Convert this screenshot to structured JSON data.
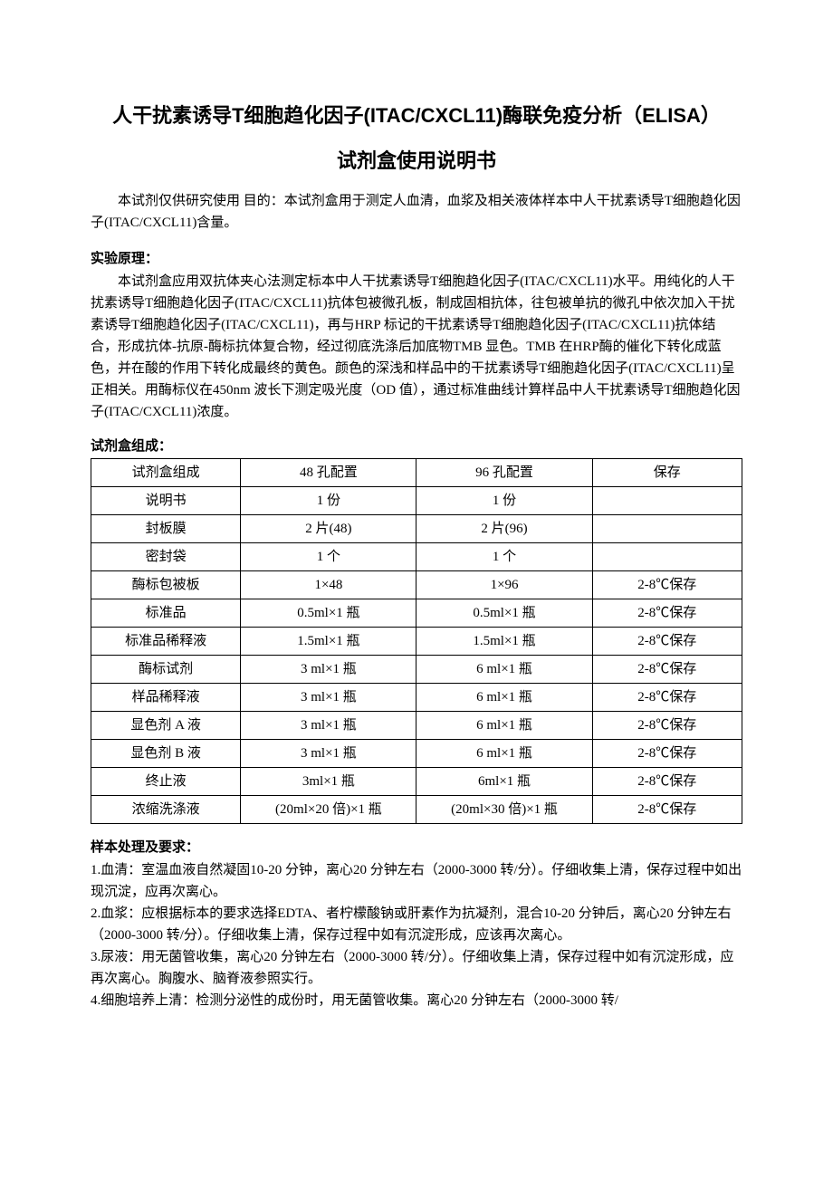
{
  "title_line1": "人干扰素诱导T细胞趋化因子(ITAC/CXCL11)酶联免疫分析（ELISA）",
  "title_line2": "试剂盒使用说明书",
  "intro": "本试剂仅供研究使用 目的：本试剂盒用于测定人血清，血浆及相关液体样本中人干扰素诱导T细胞趋化因子(ITAC/CXCL11)含量。",
  "principle_head": "实验原理：",
  "principle_body": "本试剂盒应用双抗体夹心法测定标本中人干扰素诱导T细胞趋化因子(ITAC/CXCL11)水平。用纯化的人干扰素诱导T细胞趋化因子(ITAC/CXCL11)抗体包被微孔板，制成固相抗体，往包被单抗的微孔中依次加入干扰素诱导T细胞趋化因子(ITAC/CXCL11)，再与HRP 标记的干扰素诱导T细胞趋化因子(ITAC/CXCL11)抗体结合，形成抗体-抗原-酶标抗体复合物，经过彻底洗涤后加底物TMB 显色。TMB 在HRP酶的催化下转化成蓝色，并在酸的作用下转化成最终的黄色。颜色的深浅和样品中的干扰素诱导T细胞趋化因子(ITAC/CXCL11)呈正相关。用酶标仪在450nm 波长下测定吸光度（OD 值），通过标准曲线计算样品中人干扰素诱导T细胞趋化因子(ITAC/CXCL11)浓度。",
  "kit_head": "试剂盒组成：",
  "kit_table": {
    "columns": [
      "试剂盒组成",
      "48 孔配置",
      "96 孔配置",
      "保存"
    ],
    "col_widths": [
      "23%",
      "27%",
      "27%",
      "23%"
    ],
    "border_color": "#000000",
    "font_size": 15,
    "rows": [
      [
        "说明书",
        "1 份",
        "1 份",
        ""
      ],
      [
        "封板膜",
        "2 片(48)",
        "2 片(96)",
        ""
      ],
      [
        "密封袋",
        "1 个",
        "1 个",
        ""
      ],
      [
        "酶标包被板",
        "1×48",
        "1×96",
        "2-8℃保存"
      ],
      [
        "标准品",
        "0.5ml×1 瓶",
        "0.5ml×1 瓶",
        "2-8℃保存"
      ],
      [
        "标准品稀释液",
        "1.5ml×1 瓶",
        "1.5ml×1 瓶",
        "2-8℃保存"
      ],
      [
        "酶标试剂",
        "3 ml×1 瓶",
        "6 ml×1 瓶",
        "2-8℃保存"
      ],
      [
        "样品稀释液",
        "3 ml×1 瓶",
        "6 ml×1 瓶",
        "2-8℃保存"
      ],
      [
        "显色剂 A 液",
        "3 ml×1 瓶",
        "6 ml×1 瓶",
        "2-8℃保存"
      ],
      [
        "显色剂 B 液",
        "3 ml×1 瓶",
        "6 ml×1 瓶",
        "2-8℃保存"
      ],
      [
        "终止液",
        "3ml×1 瓶",
        "6ml×1 瓶",
        "2-8℃保存"
      ],
      [
        "浓缩洗涤液",
        "(20ml×20 倍)×1 瓶",
        "(20ml×30 倍)×1 瓶",
        "2-8℃保存"
      ]
    ]
  },
  "sample_head": "样本处理及要求：",
  "sample_items": [
    "1.血清：室温血液自然凝固10-20 分钟，离心20 分钟左右（2000-3000 转/分）。仔细收集上清，保存过程中如出现沉淀，应再次离心。",
    "2.血浆：应根据标本的要求选择EDTA、者柠檬酸钠或肝素作为抗凝剂，混合10-20 分钟后，离心20 分钟左右（2000-3000 转/分）。仔细收集上清，保存过程中如有沉淀形成，应该再次离心。",
    "3.尿液：用无菌管收集，离心20 分钟左右（2000-3000 转/分）。仔细收集上清，保存过程中如有沉淀形成，应再次离心。胸腹水、脑脊液参照实行。",
    "4.细胞培养上清：检测分泌性的成份时，用无菌管收集。离心20 分钟左右（2000-3000 转/"
  ],
  "colors": {
    "text": "#000000",
    "background": "#ffffff",
    "table_border": "#000000"
  },
  "typography": {
    "title_fontsize": 22,
    "body_fontsize": 15,
    "line_height": 24,
    "title_font": "SimHei",
    "body_font": "SimSun"
  }
}
